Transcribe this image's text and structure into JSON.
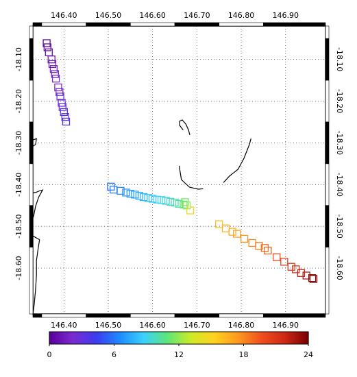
{
  "chart_data": {
    "type": "scatter",
    "title": "",
    "xlabel": "",
    "ylabel": "",
    "x_axis": {
      "range": [
        146.33,
        146.99
      ],
      "tick_values": [
        146.4,
        146.5,
        146.6,
        146.7,
        146.8,
        146.9
      ],
      "tick_labels": [
        "146.40",
        "146.50",
        "146.60",
        "146.70",
        "146.80",
        "146.90"
      ]
    },
    "y_axis": {
      "range": [
        -18.71,
        -18.02
      ],
      "tick_values": [
        -18.1,
        -18.2,
        -18.3,
        -18.4,
        -18.5,
        -18.6
      ],
      "tick_labels": [
        "-18.10",
        "-18.20",
        "-18.30",
        "-18.40",
        "-18.50",
        "-18.60"
      ],
      "right_labels_rotated": true
    },
    "grid": true,
    "marker": "open-square",
    "colorbar": {
      "min": 0,
      "max": 24,
      "ticks": [
        0,
        6,
        12,
        18,
        24
      ],
      "tick_labels": [
        "0",
        "6",
        "12",
        "18",
        "24"
      ],
      "colors": [
        "#5a0099",
        "#7a2bd0",
        "#3c3cf0",
        "#1e8cff",
        "#3cd0ff",
        "#5ae67a",
        "#cdea28",
        "#ffd21e",
        "#ff9a1e",
        "#f0501e",
        "#cd2814",
        "#780000"
      ]
    },
    "series": [
      {
        "points": [
          {
            "x": 146.361,
            "y": -18.061,
            "c": 0.3
          },
          {
            "x": 146.363,
            "y": -18.071,
            "c": 0.6
          },
          {
            "x": 146.366,
            "y": -18.083,
            "c": 0.9
          },
          {
            "x": 146.372,
            "y": -18.1,
            "c": 1.2
          },
          {
            "x": 146.374,
            "y": -18.111,
            "c": 1.4
          },
          {
            "x": 146.377,
            "y": -18.123,
            "c": 1.6
          },
          {
            "x": 146.38,
            "y": -18.135,
            "c": 1.8
          },
          {
            "x": 146.382,
            "y": -18.146,
            "c": 2.0
          },
          {
            "x": 146.387,
            "y": -18.167,
            "c": 2.2
          },
          {
            "x": 146.39,
            "y": -18.178,
            "c": 2.4
          },
          {
            "x": 146.392,
            "y": -18.189,
            "c": 2.6
          },
          {
            "x": 146.395,
            "y": -18.204,
            "c": 2.8
          },
          {
            "x": 146.397,
            "y": -18.214,
            "c": 3.0
          },
          {
            "x": 146.4,
            "y": -18.226,
            "c": 3.2
          },
          {
            "x": 146.403,
            "y": -18.238,
            "c": 3.4
          },
          {
            "x": 146.405,
            "y": -18.249,
            "c": 3.6
          }
        ]
      },
      {
        "points": [
          {
            "x": 146.506,
            "y": -18.405,
            "c": 6.0
          },
          {
            "x": 146.512,
            "y": -18.412,
            "c": 6.2
          },
          {
            "x": 146.528,
            "y": -18.415,
            "c": 6.5
          },
          {
            "x": 146.54,
            "y": -18.419,
            "c": 6.8
          },
          {
            "x": 146.55,
            "y": -18.422,
            "c": 7.0
          },
          {
            "x": 146.56,
            "y": -18.424,
            "c": 7.3
          },
          {
            "x": 146.57,
            "y": -18.427,
            "c": 7.6
          },
          {
            "x": 146.58,
            "y": -18.43,
            "c": 7.9
          },
          {
            "x": 146.59,
            "y": -18.432,
            "c": 8.2
          },
          {
            "x": 146.6,
            "y": -18.434,
            "c": 8.5
          },
          {
            "x": 146.61,
            "y": -18.436,
            "c": 8.8
          },
          {
            "x": 146.62,
            "y": -18.437,
            "c": 9.1
          },
          {
            "x": 146.63,
            "y": -18.439,
            "c": 9.4
          },
          {
            "x": 146.64,
            "y": -18.441,
            "c": 9.7
          },
          {
            "x": 146.65,
            "y": -18.443,
            "c": 10.0
          },
          {
            "x": 146.66,
            "y": -18.446,
            "c": 10.3
          },
          {
            "x": 146.67,
            "y": -18.448,
            "c": 10.8
          },
          {
            "x": 146.673,
            "y": -18.442,
            "c": 11.5
          },
          {
            "x": 146.677,
            "y": -18.45,
            "c": 12.2
          }
        ]
      },
      {
        "points": [
          {
            "x": 146.685,
            "y": -18.462,
            "c": 14.5
          },
          {
            "x": 146.75,
            "y": -18.495,
            "c": 16.0
          },
          {
            "x": 146.765,
            "y": -18.505,
            "c": 16.4
          },
          {
            "x": 146.78,
            "y": -18.513,
            "c": 16.8
          },
          {
            "x": 146.79,
            "y": -18.518,
            "c": 17.1
          },
          {
            "x": 146.807,
            "y": -18.53,
            "c": 17.5
          },
          {
            "x": 146.825,
            "y": -18.54,
            "c": 18.0
          },
          {
            "x": 146.84,
            "y": -18.547,
            "c": 18.4
          },
          {
            "x": 146.853,
            "y": -18.552,
            "c": 18.8
          },
          {
            "x": 146.86,
            "y": -18.558,
            "c": 19.1
          },
          {
            "x": 146.88,
            "y": -18.574,
            "c": 19.6
          },
          {
            "x": 146.897,
            "y": -18.585,
            "c": 20.2
          },
          {
            "x": 146.913,
            "y": -18.597,
            "c": 20.9
          },
          {
            "x": 146.923,
            "y": -18.603,
            "c": 21.4
          },
          {
            "x": 146.935,
            "y": -18.612,
            "c": 22.0
          },
          {
            "x": 146.947,
            "y": -18.618,
            "c": 22.6
          },
          {
            "x": 146.96,
            "y": -18.624,
            "c": 23.4
          },
          {
            "x": 146.963,
            "y": -18.626,
            "c": 23.9
          }
        ]
      }
    ],
    "coastlines": [
      [
        [
          146.33,
          -18.293
        ],
        [
          146.338,
          -18.29
        ],
        [
          146.336,
          -18.304
        ],
        [
          146.33,
          -18.308
        ]
      ],
      [
        [
          146.33,
          -18.42
        ],
        [
          146.338,
          -18.418
        ],
        [
          146.345,
          -18.415
        ],
        [
          146.352,
          -18.413
        ],
        [
          146.343,
          -18.43
        ],
        [
          146.336,
          -18.452
        ],
        [
          146.332,
          -18.474
        ],
        [
          146.33,
          -18.48
        ]
      ],
      [
        [
          146.33,
          -18.523
        ],
        [
          146.345,
          -18.532
        ],
        [
          146.342,
          -18.552
        ],
        [
          146.338,
          -18.582
        ],
        [
          146.338,
          -18.617
        ],
        [
          146.336,
          -18.652
        ],
        [
          146.333,
          -18.687
        ],
        [
          146.33,
          -18.712
        ]
      ],
      [
        [
          146.669,
          -18.269
        ],
        [
          146.661,
          -18.258
        ],
        [
          146.661,
          -18.248
        ],
        [
          146.667,
          -18.245
        ],
        [
          146.675,
          -18.255
        ],
        [
          146.681,
          -18.269
        ],
        [
          146.684,
          -18.281
        ]
      ],
      [
        [
          146.66,
          -18.355
        ],
        [
          146.665,
          -18.388
        ],
        [
          146.683,
          -18.406
        ],
        [
          146.703,
          -18.411
        ],
        [
          146.714,
          -18.41
        ]
      ],
      [
        [
          146.76,
          -18.395
        ],
        [
          146.773,
          -18.38
        ],
        [
          146.793,
          -18.363
        ],
        [
          146.806,
          -18.337
        ],
        [
          146.818,
          -18.305
        ],
        [
          146.822,
          -18.29
        ]
      ]
    ]
  }
}
